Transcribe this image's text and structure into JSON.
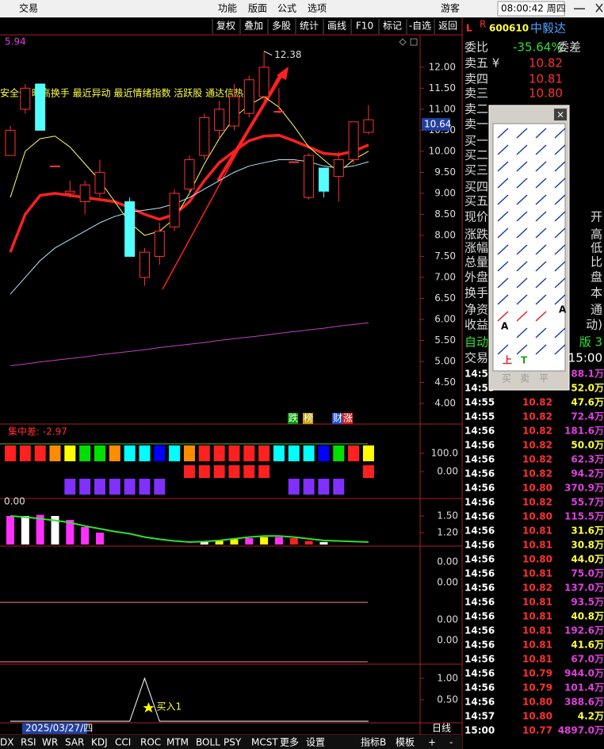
{
  "menu": {
    "app": "交易",
    "items": [
      "功能",
      "版面",
      "公式",
      "选项"
    ],
    "user": "游客",
    "clock": "08:00:42 周四"
  },
  "toolbar": [
    "复权",
    "叠加",
    "多股",
    "统计",
    "画线",
    "F10",
    "标记",
    "-自选",
    "返回"
  ],
  "main_chart": {
    "corner_value": "5.94",
    "indicator_text": "安全分 昨高换手 最近异动 最近情绪指数 活跃股 通达信热股",
    "high_label": "12.38",
    "price_tag": "10.64",
    "badges": [
      "跌",
      "榜",
      "财",
      "涨"
    ],
    "ylim": [
      3.7,
      12.75
    ],
    "yticks": [
      {
        "value": 12,
        "label": "12.00"
      },
      {
        "value": 11.5,
        "label": "11.50"
      },
      {
        "value": 11,
        "label": "11.00"
      },
      {
        "value": 10.5,
        "label": "10.50"
      },
      {
        "value": 10,
        "label": "10.00"
      },
      {
        "value": 9.5,
        "label": "9.50"
      },
      {
        "value": 9,
        "label": "9.00"
      },
      {
        "value": 8.5,
        "label": "8.50"
      },
      {
        "value": 8,
        "label": "8.00"
      },
      {
        "value": 7.5,
        "label": "7.50"
      },
      {
        "value": 7,
        "label": "7.00"
      },
      {
        "value": 6.5,
        "label": "6.50"
      },
      {
        "value": 6,
        "label": "6.00"
      },
      {
        "value": 5.5,
        "label": "5.50"
      },
      {
        "value": 5,
        "label": "5.00"
      },
      {
        "value": 4.5,
        "label": "4.50"
      },
      {
        "value": 4,
        "label": "4.00"
      }
    ],
    "candles": [
      {
        "open": 9.9,
        "high": 10.6,
        "low": 9.9,
        "close": 10.5
      },
      {
        "open": 11.0,
        "high": 11.6,
        "low": 10.9,
        "close": 11.5
      },
      {
        "open": 11.6,
        "high": 11.6,
        "low": 10.5,
        "close": 10.5
      },
      {
        "open": 9.65,
        "high": 9.65,
        "low": 9.65,
        "close": 9.65
      },
      {
        "open": 9.0,
        "high": 9.3,
        "low": 8.9,
        "close": 9.05
      },
      {
        "open": 8.8,
        "high": 9.3,
        "low": 8.5,
        "close": 9.2
      },
      {
        "open": 9.0,
        "high": 9.8,
        "low": 8.9,
        "close": 9.5
      },
      null,
      {
        "open": 8.8,
        "high": 8.9,
        "low": 7.5,
        "close": 7.5
      },
      {
        "open": 7.0,
        "high": 7.7,
        "low": 6.8,
        "close": 7.6
      },
      {
        "open": 7.5,
        "high": 8.3,
        "low": 7.3,
        "close": 8.1
      },
      {
        "open": 8.2,
        "high": 9.1,
        "low": 8.1,
        "close": 9.0
      },
      {
        "open": 9.1,
        "high": 9.9,
        "low": 9.0,
        "close": 9.8
      },
      {
        "open": 9.9,
        "high": 10.9,
        "low": 9.8,
        "close": 10.8
      },
      {
        "open": 10.5,
        "high": 11.2,
        "low": 10.3,
        "close": 11.0
      },
      {
        "open": 10.6,
        "high": 11.6,
        "low": 10.5,
        "close": 11.3
      },
      {
        "open": 10.9,
        "high": 11.8,
        "low": 10.8,
        "close": 11.7
      },
      {
        "open": 11.3,
        "high": 12.38,
        "low": 11.2,
        "close": 12.0
      },
      {
        "open": 10.95,
        "high": 11.5,
        "low": 10.9,
        "close": 10.95
      },
      {
        "open": 9.75,
        "high": 9.75,
        "low": 9.75,
        "close": 9.75
      },
      {
        "open": 8.9,
        "high": 9.95,
        "low": 8.85,
        "close": 9.9
      },
      {
        "open": 9.6,
        "high": 9.6,
        "low": 8.9,
        "close": 9.05
      },
      {
        "open": 9.4,
        "high": 10.0,
        "low": 8.8,
        "close": 9.8
      },
      {
        "open": 9.8,
        "high": 10.7,
        "low": 9.7,
        "close": 10.7
      },
      {
        "open": 10.45,
        "high": 11.1,
        "low": 10.4,
        "close": 10.75
      }
    ],
    "lines": [
      {
        "color": "#ff2020",
        "width": 3.5,
        "values": [
          7.6,
          8.5,
          8.95,
          9.0,
          8.95,
          8.9,
          8.85,
          8.8,
          8.66,
          8.5,
          8.38,
          8.5,
          8.8,
          9.3,
          9.73,
          10.0,
          10.25,
          10.36,
          10.38,
          10.25,
          10.1,
          9.95,
          9.92,
          10.0,
          10.15
        ]
      },
      {
        "color": "#ffff60",
        "width": 1,
        "values": [
          8.9,
          10.0,
          10.3,
          10.36,
          10.1,
          9.7,
          9.3,
          8.8,
          8.3,
          8.0,
          8.1,
          8.4,
          9.0,
          9.7,
          10.3,
          10.8,
          11.1,
          11.3,
          11.05,
          10.6,
          10.1,
          9.8,
          9.5,
          9.8,
          10.0
        ]
      },
      {
        "color": "#b0e8ff",
        "width": 1,
        "values": [
          6.6,
          7.0,
          7.4,
          7.7,
          7.9,
          8.1,
          8.3,
          8.45,
          8.55,
          8.6,
          8.65,
          8.75,
          8.9,
          9.1,
          9.3,
          9.5,
          9.65,
          9.73,
          9.8,
          9.8,
          9.75,
          9.65,
          9.6,
          9.65,
          9.75
        ]
      },
      {
        "color": "#c040c0",
        "width": 1,
        "values": [
          4.9,
          4.94,
          4.99,
          5.03,
          5.07,
          5.11,
          5.16,
          5.2,
          5.24,
          5.28,
          5.33,
          5.37,
          5.41,
          5.45,
          5.5,
          5.54,
          5.58,
          5.62,
          5.67,
          5.71,
          5.75,
          5.79,
          5.84,
          5.88,
          5.92
        ]
      }
    ]
  },
  "panel1": {
    "label": "集中差: -2.97",
    "ylim": [
      -139,
      252
    ],
    "yticks": [
      {
        "value": 100,
        "label": "100.0"
      },
      {
        "value": 0,
        "label": "0.00"
      }
    ],
    "top_colors": [
      "#ff2020",
      "#ff2020",
      "#ff2020",
      "#ff8c00",
      "#ffff00",
      "#00e000",
      "#00e000",
      "#ff8c00",
      "#00ffff",
      "#00ffff",
      "#0000ff",
      "#00ffff",
      "#ff8c00",
      "#ff2020",
      "#ff2020",
      "#ff2020",
      "#ff2020",
      "#ff2020",
      "#00ffff",
      "#00ffff",
      "#00ffff",
      "#0000ff",
      "#00e000",
      "#ff2020",
      "#ffff00"
    ],
    "bottom_colors": [
      null,
      null,
      null,
      null,
      "#8030ff",
      "#8030ff",
      "#8030ff",
      "#8030ff",
      "#8030ff",
      "#8030ff",
      "#8030ff",
      null,
      "#ff2020",
      "#ff2020",
      "#ff2020",
      "#ff2020",
      "#ff2020",
      "#ff2020",
      null,
      "#8030ff",
      "#8030ff",
      "#8030ff",
      "#8030ff",
      null,
      "#ff2020"
    ]
  },
  "panel2": {
    "label": "0.00",
    "ylim": [
      0.986,
      1.657
    ],
    "yticks": [
      {
        "value": 1.5,
        "label": "1.50"
      },
      {
        "value": 1.2,
        "label": "1.20"
      }
    ],
    "bars": [
      1.5,
      1.5,
      1.52,
      1.5,
      1.43,
      1.3,
      1.2,
      null,
      null,
      null,
      null,
      null,
      null,
      1.03,
      1.05,
      1.08,
      1.1,
      1.12,
      1.12,
      1.1,
      1.05,
      1.03,
      null,
      null,
      null
    ],
    "bar_colors": [
      "#ff30ff",
      "#ffffff",
      "#ff30ff",
      "#ffffff",
      "#ff30ff",
      "#ff30ff",
      "#ff30ff",
      null,
      null,
      null,
      null,
      null,
      null,
      "#ffffff",
      "#ffff00",
      "#ffff00",
      "#ff30ff",
      "#ffff00",
      "#ff30ff",
      "#ff2020",
      "#ff2020",
      "#ffffff",
      null,
      null,
      null
    ],
    "line": [
      1.5,
      1.48,
      1.45,
      1.42,
      1.38,
      1.32,
      1.27,
      1.22,
      1.18,
      1.12,
      1.08,
      1.05,
      1.03,
      1.04,
      1.06,
      1.09,
      1.12,
      1.14,
      1.14,
      1.12,
      1.09,
      1.06,
      1.05,
      1.04,
      1.03
    ]
  },
  "panel3": {
    "labels": [
      "0.00",
      "0.00"
    ]
  },
  "panel4": {
    "labels": [
      "0.00",
      "0.00"
    ]
  },
  "panel5": {
    "ylim": [
      0,
      1.2
    ],
    "yticks": [
      {
        "value": 1,
        "label": "1.00"
      },
      {
        "value": 0.5,
        "label": "0.50"
      }
    ],
    "signal": [
      0,
      0,
      0,
      0,
      0,
      0,
      0,
      0,
      0,
      1,
      0,
      0,
      0,
      0,
      0,
      0,
      0,
      0,
      0,
      0,
      0,
      0,
      0,
      0,
      0
    ],
    "signal_label": "买入1"
  },
  "date_label": "2025/03/27/四",
  "period": "日线",
  "tabs": [
    "DX",
    "RSI",
    "WR",
    "SAR",
    "KDJ",
    "CCI",
    "ROC",
    "MTM",
    "BOLL",
    "PSY",
    "MCST",
    "更多",
    "设置"
  ],
  "tabs_right": [
    "指标B",
    "模板",
    "+",
    "-"
  ],
  "stock": {
    "flag": "L",
    "flag_sup": "R",
    "code": "600610",
    "name": "中毅达"
  },
  "ratio": {
    "label": "委比",
    "value": "-35.64%",
    "diff_label": "委差"
  },
  "asks": [
    {
      "label": "卖五 ¥",
      "price": "10.82"
    },
    {
      "label": "卖四",
      "price": "10.81"
    },
    {
      "label": "卖三",
      "price": "10.80"
    },
    {
      "label": "卖二"
    },
    {
      "label": "卖一"
    }
  ],
  "bids": [
    "买一",
    "买二",
    "买三",
    "买四",
    "买五"
  ],
  "quote_rows": [
    {
      "left": "现价",
      "right": "开"
    },
    {
      "left": "涨跌",
      "right": "高"
    },
    {
      "left": "涨幅",
      "right": "低"
    },
    {
      "left": "总量",
      "right": "比"
    },
    {
      "left": "外盘",
      "right": "盘"
    },
    {
      "left": "换手",
      "right": "本"
    },
    {
      "left": "净资",
      "right": "通"
    },
    {
      "left": "收益",
      "right": "动)"
    },
    {
      "left": "自动",
      "right": "版 3"
    },
    {
      "left": "交易",
      "right": "15:00"
    }
  ],
  "trades": [
    {
      "time": "14:5",
      "volume": "88.1万",
      "color": "#e040e0"
    },
    {
      "time": "14:55",
      "volume": "52.0万",
      "color": "#ffff40"
    },
    {
      "time": "14:55",
      "price": "10.82",
      "volume": "47.6万",
      "color": "#ffff40"
    },
    {
      "time": "14:55",
      "price": "10.82",
      "volume": "72.4万",
      "color": "#e040e0"
    },
    {
      "time": "14:56",
      "price": "10.82",
      "volume": "181.6万",
      "color": "#e040e0"
    },
    {
      "time": "14:56",
      "price": "10.82",
      "volume": "50.0万",
      "color": "#ffff40"
    },
    {
      "time": "14:56",
      "price": "10.82",
      "volume": "62.3万",
      "color": "#e040e0"
    },
    {
      "time": "14:56",
      "price": "10.82",
      "volume": "94.2万",
      "color": "#e040e0"
    },
    {
      "time": "14:56",
      "price": "10.80",
      "volume": "370.9万",
      "color": "#e040e0"
    },
    {
      "time": "14:56",
      "price": "10.82",
      "volume": "55.7万",
      "color": "#e040e0"
    },
    {
      "time": "14:56",
      "price": "10.80",
      "volume": "115.5万",
      "color": "#e040e0"
    },
    {
      "time": "14:56",
      "price": "10.81",
      "volume": "31.6万",
      "color": "#ffff40"
    },
    {
      "time": "14:56",
      "price": "10.81",
      "volume": "30.8万",
      "color": "#ffff40"
    },
    {
      "time": "14:56",
      "price": "10.80",
      "volume": "44.0万",
      "color": "#ffff40"
    },
    {
      "time": "14:56",
      "price": "10.81",
      "volume": "75.0万",
      "color": "#e040e0"
    },
    {
      "time": "14:56",
      "price": "10.82",
      "volume": "137.0万",
      "color": "#e040e0"
    },
    {
      "time": "14:56",
      "price": "10.81",
      "volume": "93.5万",
      "color": "#e040e0"
    },
    {
      "time": "14:56",
      "price": "10.81",
      "volume": "40.8万",
      "color": "#ffff40"
    },
    {
      "time": "14:56",
      "price": "10.81",
      "volume": "192.6万",
      "color": "#e040e0"
    },
    {
      "time": "14:56",
      "price": "10.81",
      "volume": "41.6万",
      "color": "#ffff40"
    },
    {
      "time": "14:56",
      "price": "10.81",
      "volume": "67.0万",
      "color": "#e040e0"
    },
    {
      "time": "14:56",
      "price": "10.79",
      "volume": "944.0万",
      "color": "#e040e0"
    },
    {
      "time": "14:56",
      "price": "10.79",
      "volume": "101.4万",
      "color": "#e040e0"
    },
    {
      "time": "14:56",
      "price": "10.80",
      "volume": "388.6万",
      "color": "#e040e0"
    },
    {
      "time": "14:57",
      "price": "10.80",
      "volume": "4.2万",
      "color": "#ffff40"
    },
    {
      "time": "15:00",
      "price": "10.77",
      "volume": "4897.0万",
      "color": "#e040e0"
    }
  ],
  "palette": {
    "close": "×",
    "icon_texts": [
      "A",
      "A",
      "上",
      "T"
    ],
    "footer": [
      "买",
      "卖",
      "平"
    ]
  }
}
